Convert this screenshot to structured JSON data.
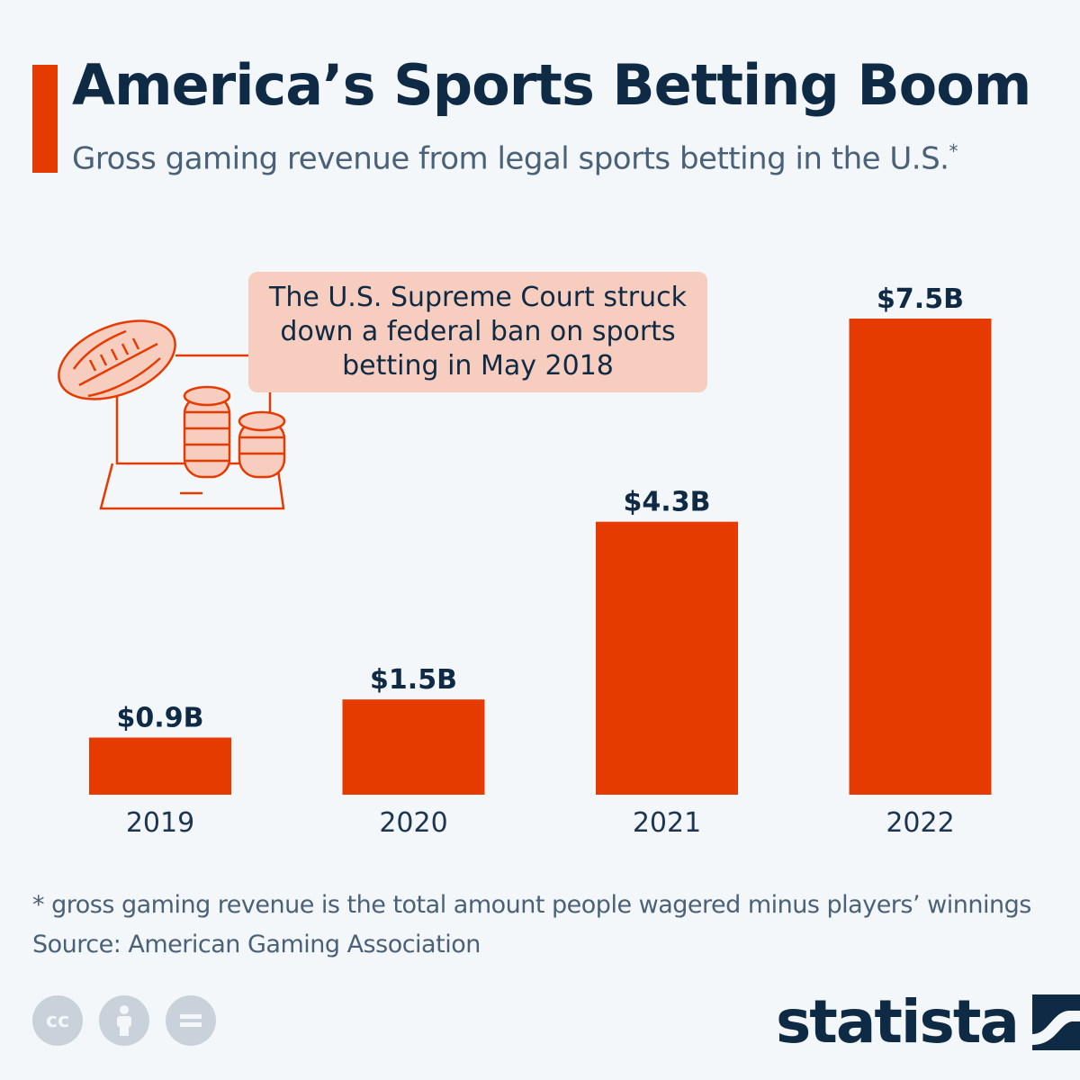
{
  "header": {
    "title": "America’s Sports Betting Boom",
    "subtitle": "Gross gaming revenue from legal sports betting in the U.S.",
    "subtitle_marker": "*"
  },
  "callout": {
    "text": "The U.S. Supreme Court struck down a federal ban on sports betting in May 2018"
  },
  "chart_data": {
    "type": "bar",
    "categories": [
      "2019",
      "2020",
      "2021",
      "2022"
    ],
    "values": [
      0.9,
      1.5,
      4.3,
      7.5
    ],
    "data_labels": [
      "$0.9B",
      "$1.5B",
      "$4.3B",
      "$7.5B"
    ],
    "title": "America’s Sports Betting Boom",
    "subtitle": "Gross gaming revenue from legal sports betting in the U.S.",
    "xlabel": "",
    "ylabel": "",
    "unit": "billion USD",
    "ylim": [
      0,
      7.5
    ],
    "grid": false,
    "legend": "none",
    "bar_color": "#e63b00"
  },
  "footer": {
    "footnote": "* gross gaming revenue is the total amount people wagered minus players’ winnings",
    "source": "Source: American Gaming Association",
    "brand": "statista"
  },
  "icons": {
    "illustration": "football-and-coins-icon",
    "license": [
      "cc-icon",
      "attribution-icon",
      "no-derivatives-icon"
    ],
    "brand_logo": "statista-logo-icon"
  },
  "colors": {
    "accent": "#e63b00",
    "title": "#0f2a44",
    "text": "#4a6178",
    "callout_bg": "#f6cdbe",
    "background": "#f3f7fa"
  }
}
